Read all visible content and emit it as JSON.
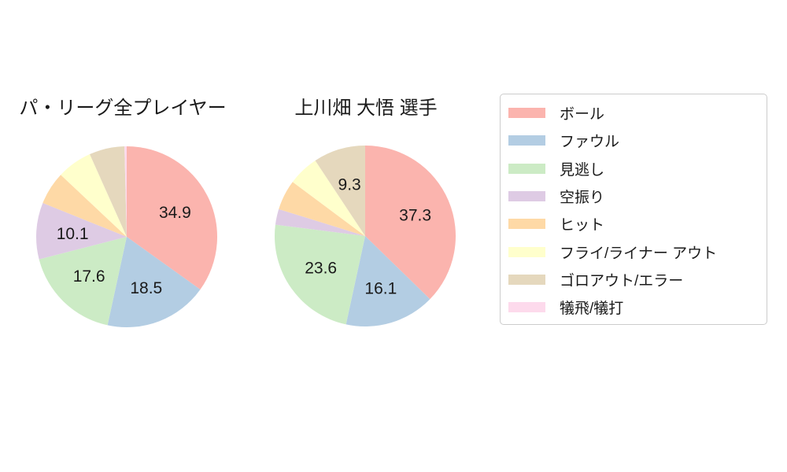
{
  "background": "#ffffff",
  "palette": [
    "#fbb4ae",
    "#b3cde3",
    "#ccebc5",
    "#decbe4",
    "#fed9a6",
    "#ffffcc",
    "#e5d8bd",
    "#fddaec"
  ],
  "text_color": "#1a1a1a",
  "legend": {
    "items": [
      "ボール",
      "ファウル",
      "見逃し",
      "空振り",
      "ヒット",
      "フライ/ライナー アウト",
      "ゴロアウト/エラー",
      "犠飛/犠打"
    ]
  },
  "chart_data": [
    {
      "type": "pie",
      "title": "パ・リーグ全プレイヤー",
      "categories": [
        "ボール",
        "ファウル",
        "見逃し",
        "空振り",
        "ヒット",
        "フライ/ライナー アウト",
        "ゴロアウト/エラー",
        "犠飛/犠打"
      ],
      "values": [
        34.9,
        18.5,
        17.6,
        10.1,
        5.9,
        6.3,
        6.3,
        0.4
      ],
      "slice_labels": [
        "34.9",
        "18.5",
        "17.6",
        "10.1",
        "",
        "",
        "",
        ""
      ],
      "start_angle_deg": 90,
      "direction": "clockwise",
      "label_distance_ratio": 0.6,
      "legend_position": "right"
    },
    {
      "type": "pie",
      "title": "上川畑 大悟 選手",
      "categories": [
        "ボール",
        "ファウル",
        "見逃し",
        "空振り",
        "ヒット",
        "フライ/ライナー アウト",
        "ゴロアウト/エラー",
        "犠飛/犠打"
      ],
      "values": [
        37.3,
        16.1,
        23.6,
        2.8,
        5.4,
        5.5,
        9.3,
        0
      ],
      "slice_labels": [
        "37.3",
        "16.1",
        "23.6",
        "",
        "",
        "",
        "9.3",
        ""
      ],
      "start_angle_deg": 90,
      "direction": "clockwise",
      "label_distance_ratio": 0.6,
      "legend_position": "right"
    }
  ]
}
